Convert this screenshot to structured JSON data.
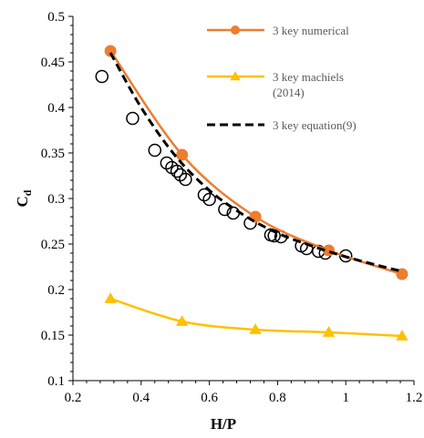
{
  "chart_data": {
    "type": "line",
    "xlabel": "H/P",
    "ylabel": "C",
    "ylabel_subscript": "d",
    "xlim": [
      0.2,
      1.2
    ],
    "ylim": [
      0.1,
      0.5
    ],
    "x_ticks": [
      "0.2",
      "0.4",
      "0.6",
      "0.8",
      "1",
      "1.2"
    ],
    "y_ticks": [
      "0.1",
      "0.15",
      "0.2",
      "0.25",
      "0.3",
      "0.35",
      "0.4",
      "0.45",
      "0.5"
    ],
    "legend_position": "top-right",
    "series": [
      {
        "name": "3 key numerical",
        "style": "line-marker",
        "marker": "circle",
        "color": "#ED7D31",
        "x": [
          0.31,
          0.52,
          0.735,
          0.95,
          1.165
        ],
        "y": [
          0.462,
          0.348,
          0.28,
          0.243,
          0.217
        ]
      },
      {
        "name": "3 key machiels",
        "name_line2": "(2014)",
        "style": "line-marker",
        "marker": "triangle",
        "color": "#FFC000",
        "x": [
          0.31,
          0.52,
          0.735,
          0.95,
          1.165
        ],
        "y": [
          0.19,
          0.165,
          0.156,
          0.153,
          0.149
        ]
      },
      {
        "name": "3 key equation(9)",
        "style": "dashed",
        "color": "#000000",
        "x": [
          0.31,
          0.4,
          0.5,
          0.6,
          0.7,
          0.8,
          0.9,
          1.0,
          1.1,
          1.165
        ],
        "y": [
          0.46,
          0.4,
          0.347,
          0.309,
          0.282,
          0.262,
          0.248,
          0.236,
          0.226,
          0.22
        ]
      },
      {
        "name": "",
        "style": "open-circle",
        "color": "#000000",
        "x": [
          0.285,
          0.375,
          0.44,
          0.475,
          0.49,
          0.505,
          0.515,
          0.53,
          0.585,
          0.6,
          0.645,
          0.67,
          0.72,
          0.78,
          0.79,
          0.81,
          0.87,
          0.885,
          0.92,
          0.94,
          1.0
        ],
        "y": [
          0.434,
          0.388,
          0.353,
          0.339,
          0.334,
          0.33,
          0.326,
          0.321,
          0.304,
          0.299,
          0.288,
          0.284,
          0.273,
          0.26,
          0.259,
          0.258,
          0.248,
          0.245,
          0.242,
          0.24,
          0.237
        ]
      }
    ]
  }
}
